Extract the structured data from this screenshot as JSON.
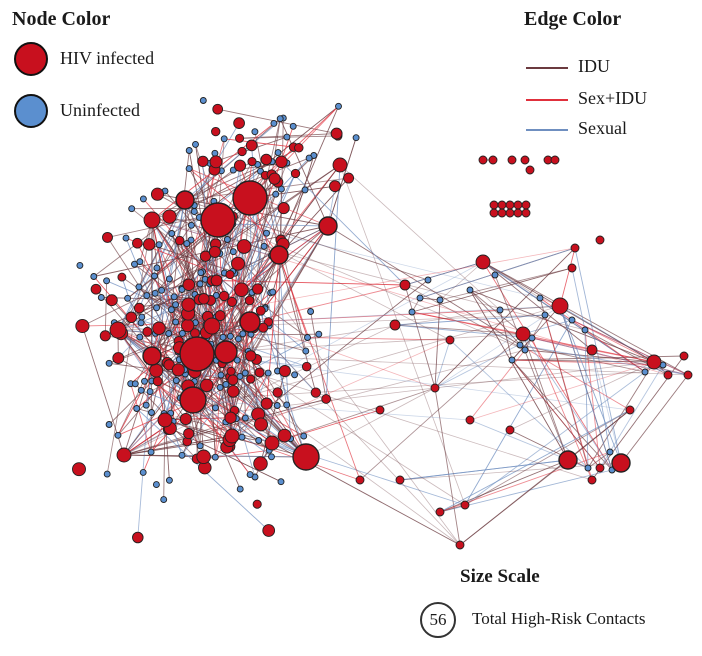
{
  "legend": {
    "node_title": "Node Color",
    "node_items": [
      {
        "label": "HIV infected",
        "color": "#c8101e"
      },
      {
        "label": "Uninfected",
        "color": "#5b8fcf"
      }
    ],
    "edge_title": "Edge Color",
    "edge_items": [
      {
        "label": "IDU",
        "color": "#6b3a3f"
      },
      {
        "label": "Sex+IDU",
        "color": "#e0303c"
      },
      {
        "label": "Sexual",
        "color": "#6f8fc0"
      }
    ],
    "size_title": "Size Scale",
    "size_value": "56",
    "size_label": "Total High-Risk Contacts"
  },
  "colors": {
    "infected_fill": "#c8101e",
    "uninfected_fill": "#5b8fcf",
    "node_stroke": "#222222",
    "idu_edge": "#6b3a3f",
    "sexidu_edge": "#e0303c",
    "sexual_edge": "#6f8fc0"
  }
}
